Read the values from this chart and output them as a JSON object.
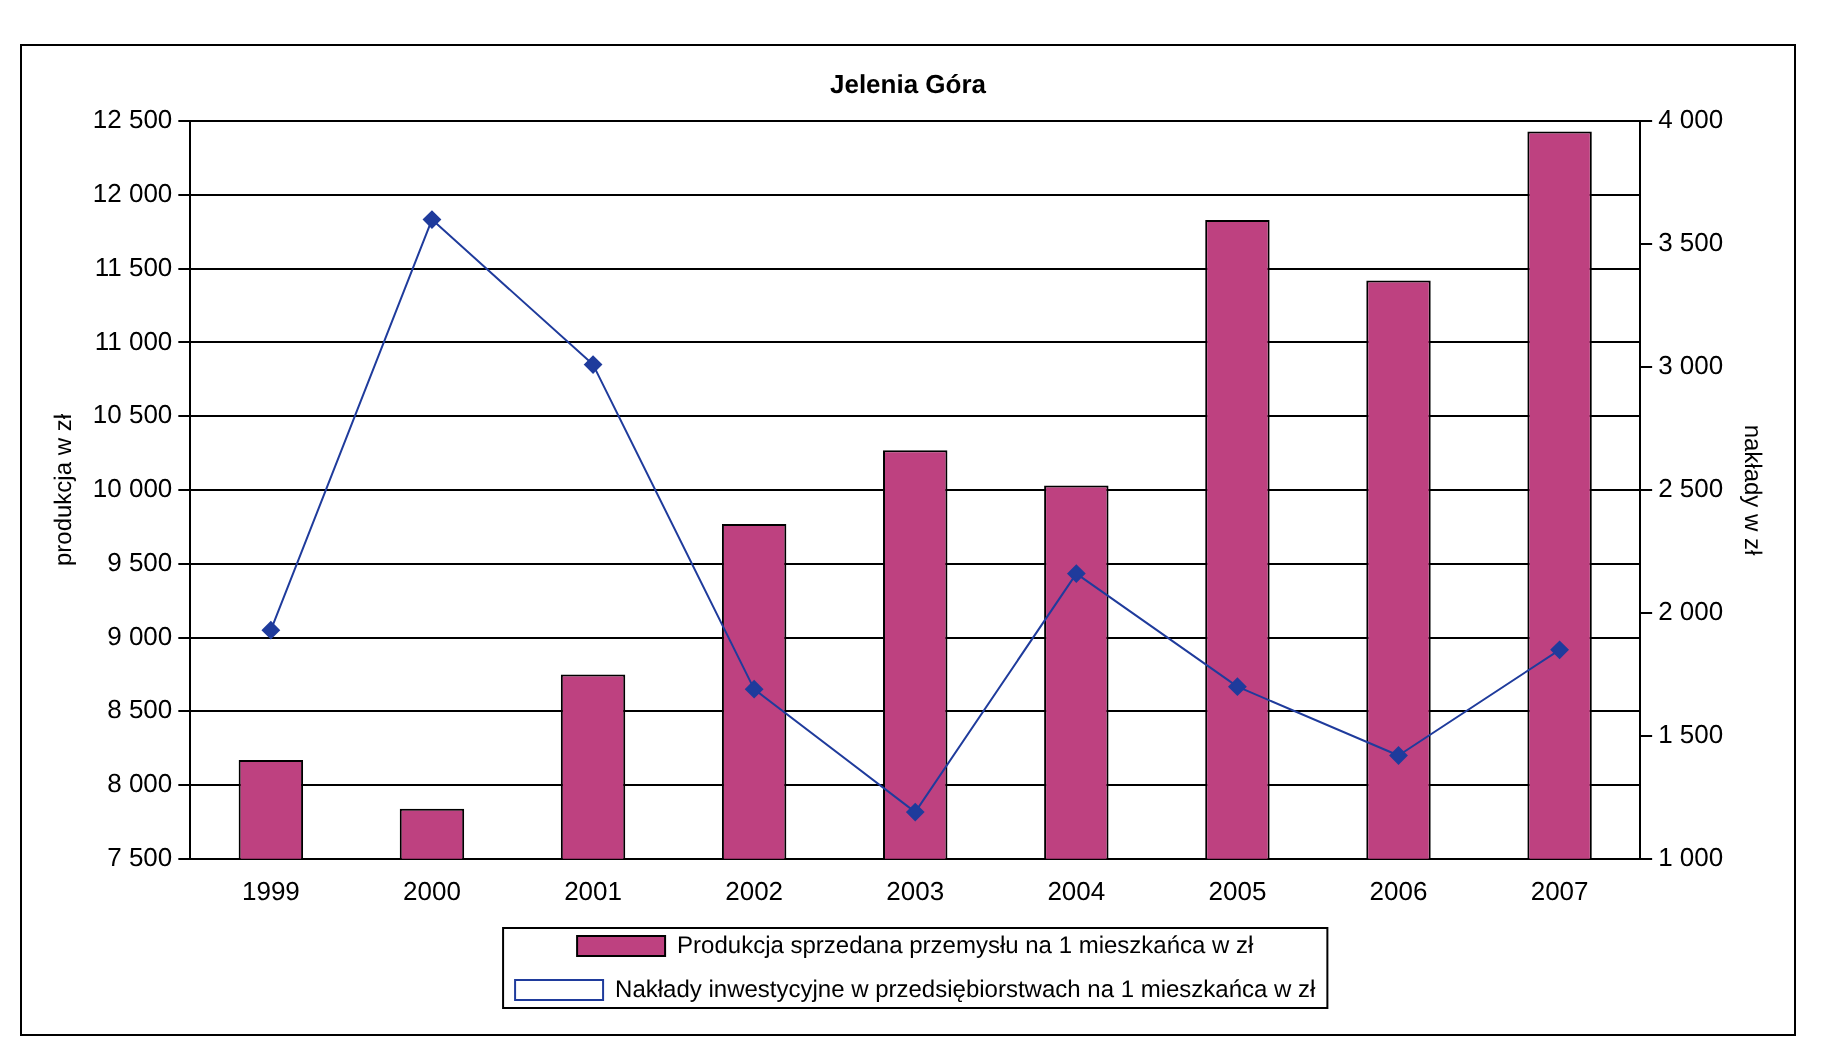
{
  "chart_data": {
    "type": "bar",
    "title": "Jelenia Góra",
    "ylabel": "produkcja w zł",
    "y2label": "nakłady w zł",
    "categories": [
      "1999",
      "2000",
      "2001",
      "2002",
      "2003",
      "2004",
      "2005",
      "2006",
      "2007"
    ],
    "series": [
      {
        "name": "Produkcja sprzedana przemysłu na 1 mieszkańca w zł",
        "color": "#be4180",
        "values": [
          8170,
          7840,
          8750,
          9770,
          10270,
          10030,
          11830,
          11420,
          12430
        ]
      },
      {
        "name": "Nakłady inwestycyjne w przedsiębiorstwach na 1 mieszkańca w zł",
        "type": "line",
        "axis": "y2",
        "color": "#1f3b9c",
        "marker": "diamond",
        "values": [
          1930,
          3600,
          3010,
          1690,
          1190,
          2160,
          1700,
          1420,
          1850
        ]
      }
    ],
    "ylim": [
      7500,
      12500
    ],
    "yticks": [
      {
        "value": 7500,
        "label": "7 500"
      },
      {
        "value": 8000,
        "label": "8 000"
      },
      {
        "value": 8500,
        "label": "8 500"
      },
      {
        "value": 9000,
        "label": "9 000"
      },
      {
        "value": 9500,
        "label": "9 500"
      },
      {
        "value": 10000,
        "label": "10 000"
      },
      {
        "value": 10500,
        "label": "10 500"
      },
      {
        "value": 11000,
        "label": "11 000"
      },
      {
        "value": 11500,
        "label": "11 500"
      },
      {
        "value": 12000,
        "label": "12 000"
      },
      {
        "value": 12500,
        "label": "12 500"
      }
    ],
    "y2lim": [
      1000,
      4000
    ],
    "y2ticks": [
      {
        "value": 1000,
        "label": "1 000"
      },
      {
        "value": 1500,
        "label": "1 500"
      },
      {
        "value": 2000,
        "label": "2 000"
      },
      {
        "value": 2500,
        "label": "2 500"
      },
      {
        "value": 3000,
        "label": "3 000"
      },
      {
        "value": 3500,
        "label": "3 500"
      },
      {
        "value": 4000,
        "label": "4 000"
      }
    ],
    "grid": "y",
    "legend": "bottom"
  }
}
